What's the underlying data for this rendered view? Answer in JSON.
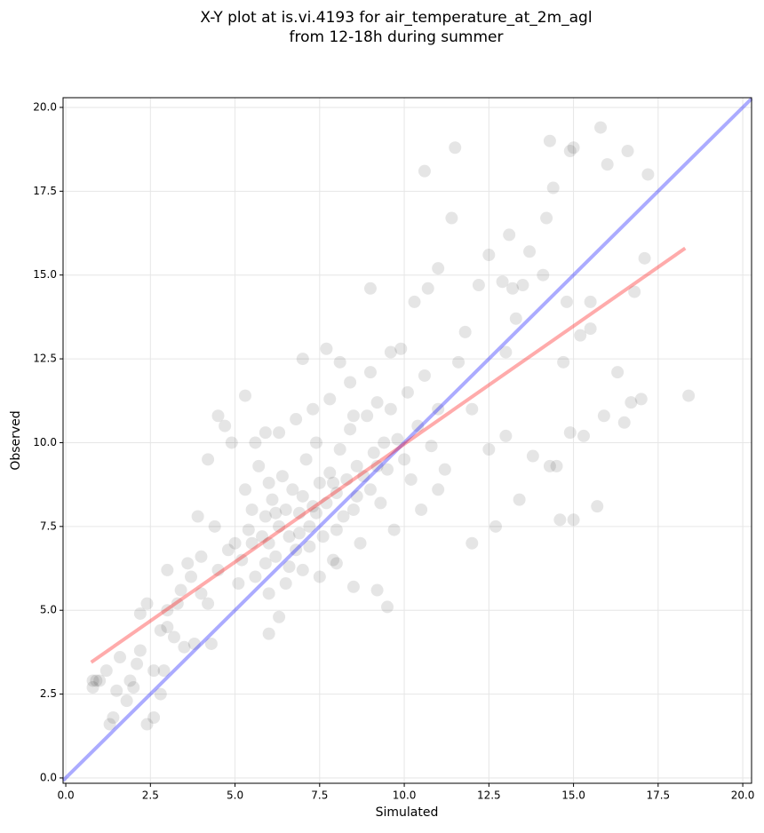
{
  "chart_data": {
    "type": "scatter",
    "title": [
      "X-Y plot at is.vi.4193 for air_temperature_at_2m_agl",
      "from 12-18h during summer"
    ],
    "x_label": "Simulated",
    "y_label": "Observed",
    "grid": true,
    "color": "#000000",
    "xlim": [
      -0.08,
      20.26
    ],
    "ylim": [
      -0.16,
      20.29
    ],
    "xticks": [
      {
        "value": 0,
        "label": "0.0"
      },
      2.5,
      {
        "value": 5,
        "label": "5.0"
      },
      7.5,
      {
        "value": 10,
        "label": "10.0"
      },
      12.5,
      {
        "value": 15,
        "label": "15.0"
      },
      17.5,
      {
        "value": 20,
        "label": "20.0"
      }
    ],
    "yticks": [
      {
        "value": 0,
        "label": "0.0"
      },
      2.5,
      {
        "value": 5,
        "label": "5.0"
      },
      7.5,
      {
        "value": 10,
        "label": "10.0"
      },
      12.5,
      {
        "value": 15,
        "label": "15.0"
      },
      17.5,
      {
        "value": 20,
        "label": "20.0"
      }
    ],
    "x": [
      0.8,
      0.9,
      1.2,
      1.3,
      1.4,
      1.5,
      1.6,
      1.8,
      2.0,
      2.1,
      2.2,
      2.4,
      2.4,
      2.6,
      2.6,
      2.8,
      2.9,
      3.0,
      3.2,
      3.3,
      3.5,
      3.7,
      3.8,
      3.9,
      4.0,
      4.2,
      4.3,
      4.5,
      4.7,
      4.9,
      5.3,
      5.6,
      5.9,
      6.0,
      6.3,
      7.0,
      7.7,
      8.1,
      8.5,
      9.0,
      9.2,
      9.5,
      9.9,
      10.3,
      10.6,
      10.7,
      11.0,
      11.4,
      11.5,
      11.6,
      11.8,
      12.0,
      12.2,
      12.5,
      12.7,
      12.9,
      13.1,
      13.2,
      13.3,
      13.4,
      13.5,
      13.7,
      13.8,
      14.1,
      14.2,
      14.3,
      14.3,
      14.4,
      14.5,
      14.6,
      14.8,
      14.9,
      15.0,
      15.0,
      15.2,
      15.3,
      15.5,
      15.7,
      15.8,
      15.9,
      16.0,
      16.3,
      16.5,
      16.6,
      16.7,
      16.8,
      17.0,
      17.1,
      17.2,
      18.4,
      14.7,
      14.9,
      15.5,
      13.0,
      12.0,
      11.2,
      10.5,
      11.0,
      12.5,
      13.0,
      4.5,
      4.8,
      5.0,
      5.2,
      5.4,
      5.5,
      5.6,
      5.8,
      5.9,
      6.0,
      6.1,
      6.2,
      6.3,
      6.4,
      6.5,
      6.6,
      6.7,
      6.8,
      6.9,
      7.0,
      7.1,
      7.2,
      7.3,
      7.4,
      7.5,
      7.6,
      7.7,
      7.8,
      7.9,
      8.0,
      8.1,
      8.2,
      8.3,
      8.4,
      8.5,
      8.6,
      8.7,
      8.8,
      8.9,
      9.0,
      9.1,
      9.2,
      9.3,
      9.4,
      9.5,
      9.6,
      9.7,
      9.8,
      10.0,
      10.1,
      10.2,
      10.4,
      10.6,
      10.8,
      11.0,
      5.1,
      5.3,
      5.7,
      6.0,
      6.5,
      7.0,
      7.5,
      8.0,
      8.5,
      4.0,
      4.2,
      4.4,
      3.6,
      3.4,
      3.0,
      6.3,
      6.8,
      7.3,
      7.8,
      8.4,
      9.0,
      9.6,
      3.0,
      2.8,
      2.2,
      1.9,
      1.0,
      0.8,
      5.9,
      6.2,
      6.9,
      7.4,
      7.9,
      8.6,
      9.2,
      6.6,
      7.2,
      8.0,
      5.5,
      6.0
    ],
    "y": [
      2.7,
      2.9,
      3.2,
      1.6,
      1.8,
      2.6,
      3.6,
      2.3,
      2.7,
      3.4,
      4.9,
      5.2,
      1.6,
      3.2,
      1.8,
      2.5,
      3.2,
      4.5,
      4.2,
      5.2,
      3.9,
      6.0,
      4.0,
      7.8,
      5.5,
      9.5,
      4.0,
      10.8,
      10.5,
      10.0,
      11.4,
      10.0,
      10.3,
      4.3,
      4.8,
      12.5,
      12.8,
      12.4,
      10.8,
      14.6,
      5.6,
      5.1,
      12.8,
      14.2,
      18.1,
      14.6,
      15.2,
      16.7,
      18.8,
      12.4,
      13.3,
      7.0,
      14.7,
      15.6,
      7.5,
      14.8,
      16.2,
      14.6,
      13.7,
      8.3,
      14.7,
      15.7,
      9.6,
      15.0,
      16.7,
      9.3,
      19.0,
      17.6,
      9.3,
      7.7,
      14.2,
      18.7,
      18.8,
      7.7,
      13.2,
      10.2,
      14.2,
      8.1,
      19.4,
      10.8,
      18.3,
      12.1,
      10.6,
      18.7,
      11.2,
      14.5,
      11.3,
      15.5,
      18.0,
      11.4,
      12.4,
      10.3,
      13.4,
      12.7,
      11.0,
      9.2,
      8.0,
      8.6,
      9.8,
      10.2,
      6.2,
      6.8,
      7.0,
      6.5,
      7.4,
      8.0,
      6.0,
      7.2,
      7.8,
      7.0,
      8.3,
      6.6,
      7.5,
      9.0,
      8.0,
      7.2,
      8.6,
      6.8,
      7.9,
      8.4,
      9.5,
      7.5,
      8.1,
      10.0,
      8.8,
      7.2,
      8.2,
      9.1,
      6.5,
      8.5,
      9.8,
      7.8,
      8.9,
      10.4,
      8.0,
      9.3,
      7.0,
      9.0,
      10.8,
      8.6,
      9.7,
      11.2,
      8.2,
      10.0,
      9.2,
      11.0,
      7.4,
      10.1,
      9.5,
      11.5,
      8.9,
      10.5,
      12.0,
      9.9,
      11.0,
      5.8,
      8.6,
      9.3,
      5.5,
      5.8,
      6.2,
      6.0,
      6.4,
      5.7,
      6.6,
      5.2,
      7.5,
      6.4,
      5.6,
      5.0,
      10.3,
      10.7,
      11.0,
      11.3,
      11.8,
      12.1,
      12.7,
      6.2,
      4.4,
      3.8,
      2.9,
      2.9,
      2.9,
      6.4,
      7.9,
      7.3,
      7.9,
      8.8,
      8.4,
      9.3,
      6.3,
      6.9,
      7.4,
      7.0,
      8.8
    ],
    "lines": [
      {
        "color": "#0000ff",
        "x": [
          -0.08,
          20.26
        ],
        "y": [
          -0.08,
          20.26
        ]
      },
      {
        "color": "#ff0000",
        "x": [
          0.75,
          18.3
        ],
        "y": [
          3.45,
          15.8
        ]
      }
    ]
  }
}
